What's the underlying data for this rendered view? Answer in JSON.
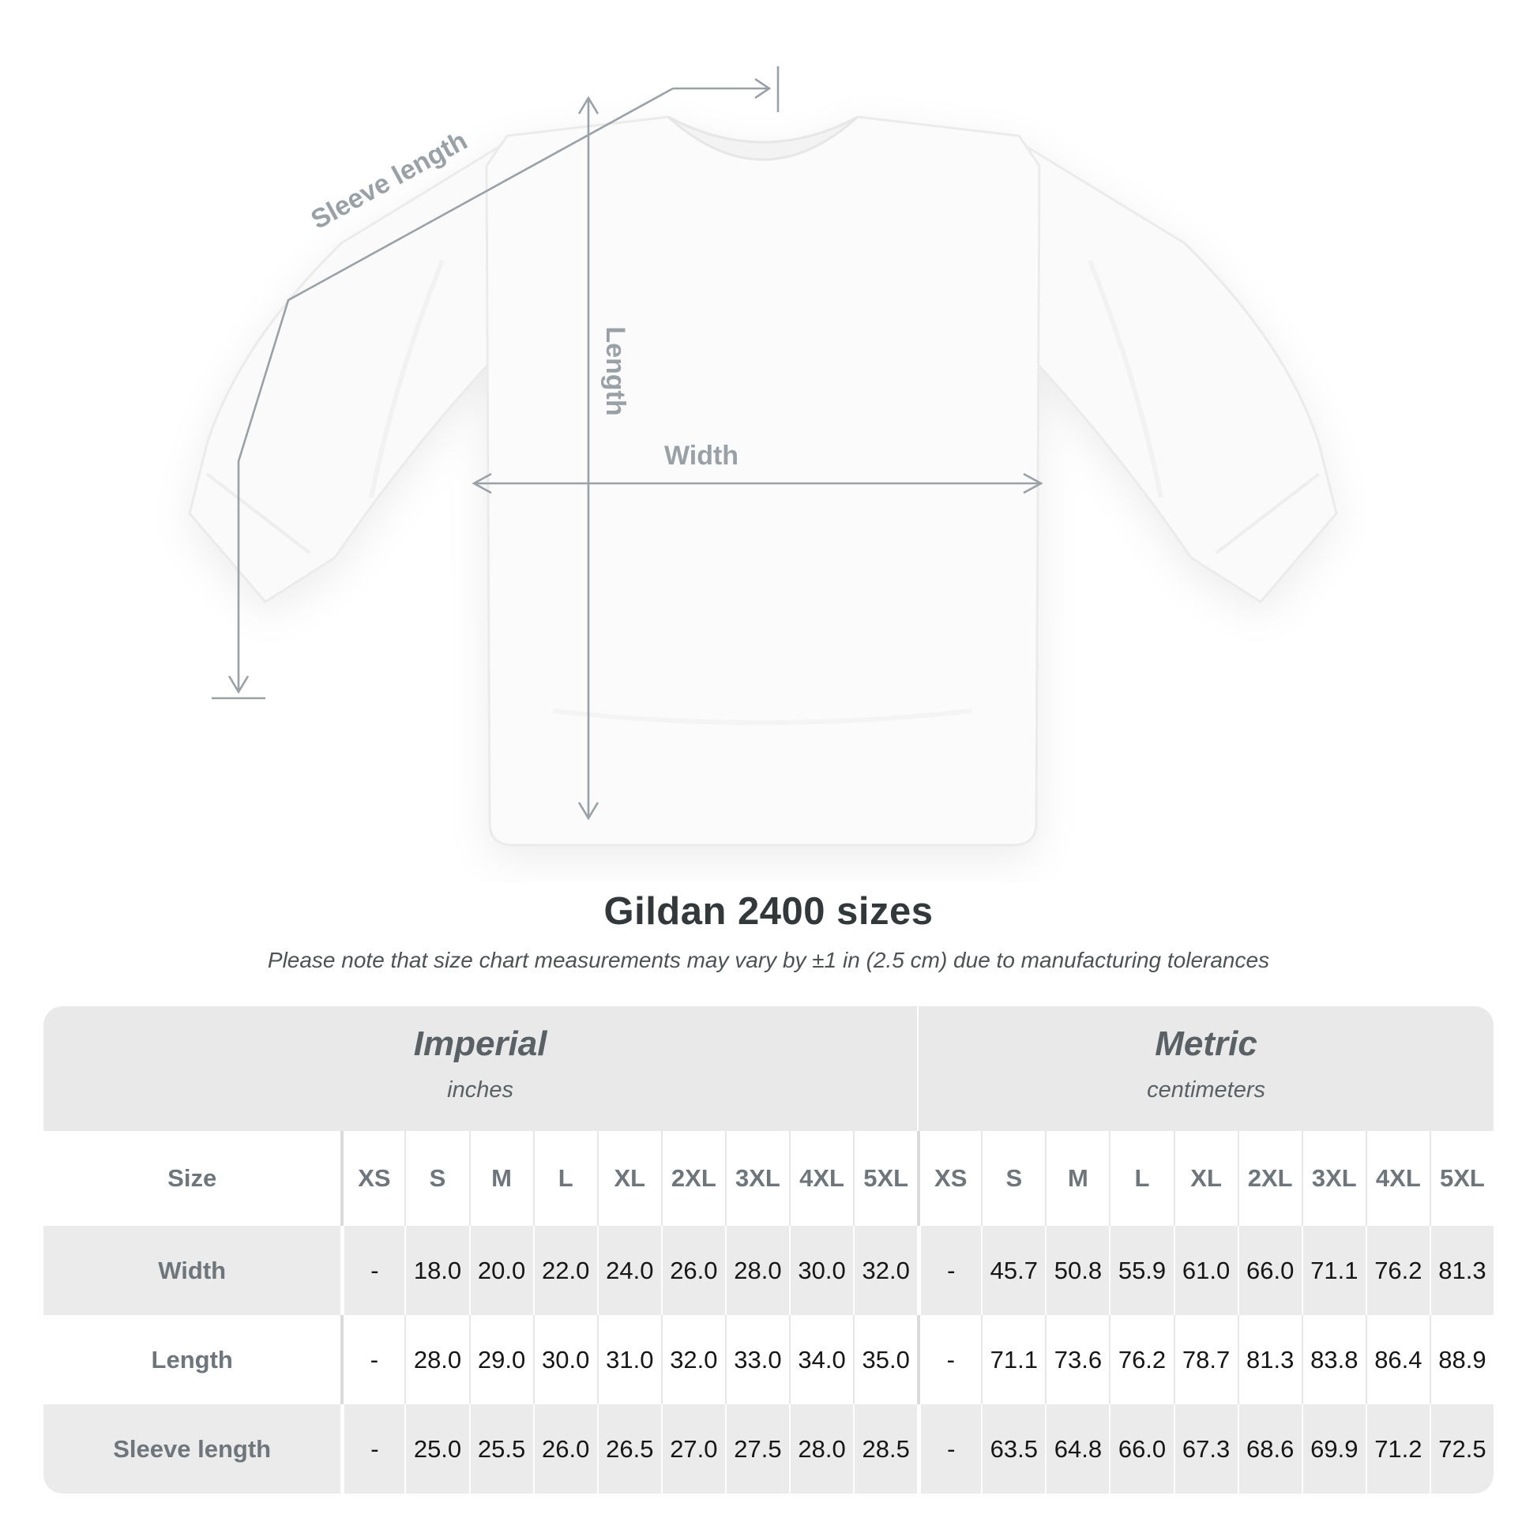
{
  "diagram": {
    "sleeve_length_label": "Sleeve length",
    "length_label": "Length",
    "width_label": "Width",
    "line_color": "#9aa1a6"
  },
  "title": "Gildan 2400 sizes",
  "subtitle": "Please note that size chart measurements may vary by ±1 in (2.5 cm) due to manufacturing tolerances",
  "table": {
    "groups": [
      {
        "label": "Imperial",
        "unit": "inches"
      },
      {
        "label": "Metric",
        "unit": "centimeters"
      }
    ],
    "size_header": "Size",
    "columns": [
      "XS",
      "S",
      "M",
      "L",
      "XL",
      "2XL",
      "3XL",
      "4XL",
      "5XL",
      "XS",
      "S",
      "M",
      "L",
      "XL",
      "2XL",
      "3XL",
      "4XL",
      "5XL"
    ],
    "rows": [
      {
        "label": "Width",
        "values": [
          "-",
          "18.0",
          "20.0",
          "22.0",
          "24.0",
          "26.0",
          "28.0",
          "30.0",
          "32.0",
          "-",
          "45.7",
          "50.8",
          "55.9",
          "61.0",
          "66.0",
          "71.1",
          "76.2",
          "81.3"
        ]
      },
      {
        "label": "Length",
        "values": [
          "-",
          "28.0",
          "29.0",
          "30.0",
          "31.0",
          "32.0",
          "33.0",
          "34.0",
          "35.0",
          "-",
          "71.1",
          "73.6",
          "76.2",
          "78.7",
          "81.3",
          "83.8",
          "86.4",
          "88.9"
        ]
      },
      {
        "label": "Sleeve length",
        "values": [
          "-",
          "25.0",
          "25.5",
          "26.0",
          "26.5",
          "27.0",
          "27.5",
          "28.0",
          "28.5",
          "-",
          "63.5",
          "64.8",
          "66.0",
          "67.3",
          "68.6",
          "69.9",
          "71.2",
          "72.5"
        ]
      }
    ]
  }
}
